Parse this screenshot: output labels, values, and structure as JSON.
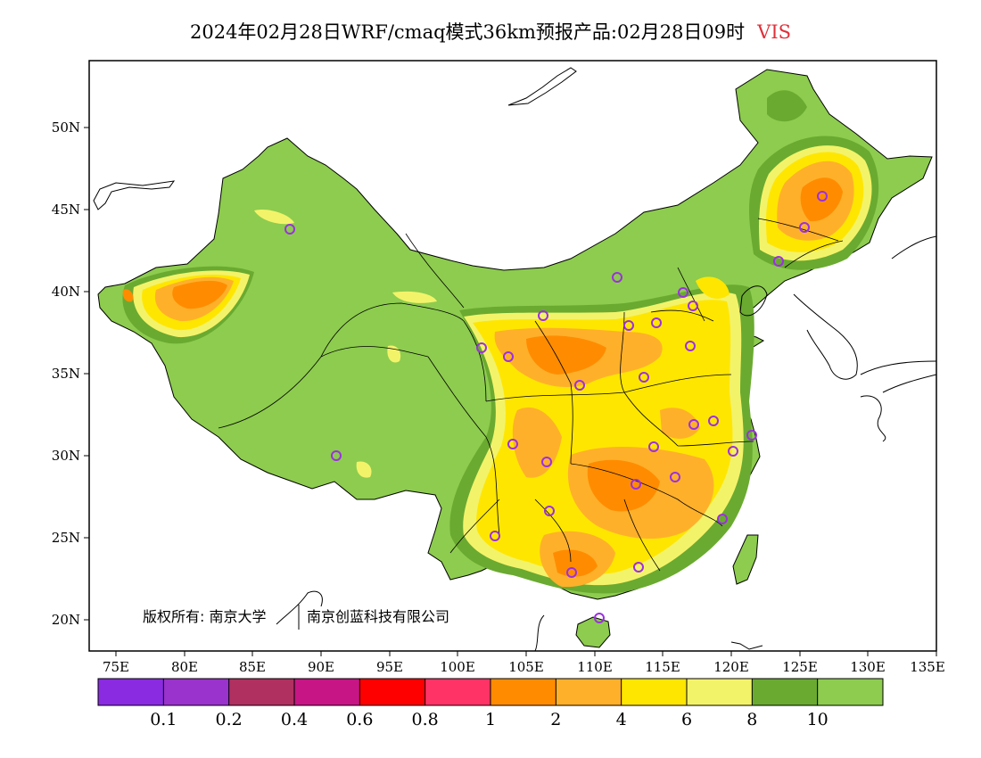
{
  "title": {
    "main": "2024年02月28日WRF/cmaq模式36km预报产品:02月28日09时",
    "variable": "VIS"
  },
  "axes": {
    "lon_ticks": [
      "75E",
      "80E",
      "85E",
      "90E",
      "95E",
      "100E",
      "105E",
      "110E",
      "115E",
      "120E",
      "125E",
      "130E",
      "135E"
    ],
    "lat_ticks": [
      "50N",
      "45N",
      "40N",
      "35N",
      "30N",
      "25N",
      "20N"
    ]
  },
  "copyright": {
    "label": "版权所有: 南京大学",
    "company": "南京创蓝科技有限公司"
  },
  "colorbar": {
    "colors": [
      "#8a2be2",
      "#9a32cd",
      "#b03060",
      "#c71585",
      "#ff0000",
      "#ff3366",
      "#ff8c00",
      "#ffb02a",
      "#ffe600",
      "#f3f36a",
      "#6aaa30",
      "#8dcc4e"
    ],
    "labels": [
      "0.1",
      "0.2",
      "0.4",
      "0.6",
      "0.8",
      "1",
      "2",
      "4",
      "6",
      "8",
      "10"
    ]
  },
  "map_colors": {
    "land": "#8dcc4e",
    "dark_green": "#6aaa30",
    "light_yellow": "#f3f36a",
    "yellow": "#ffe600",
    "orange_light": "#ffb02a",
    "orange": "#ff8c00",
    "station": "#9b30e0"
  }
}
